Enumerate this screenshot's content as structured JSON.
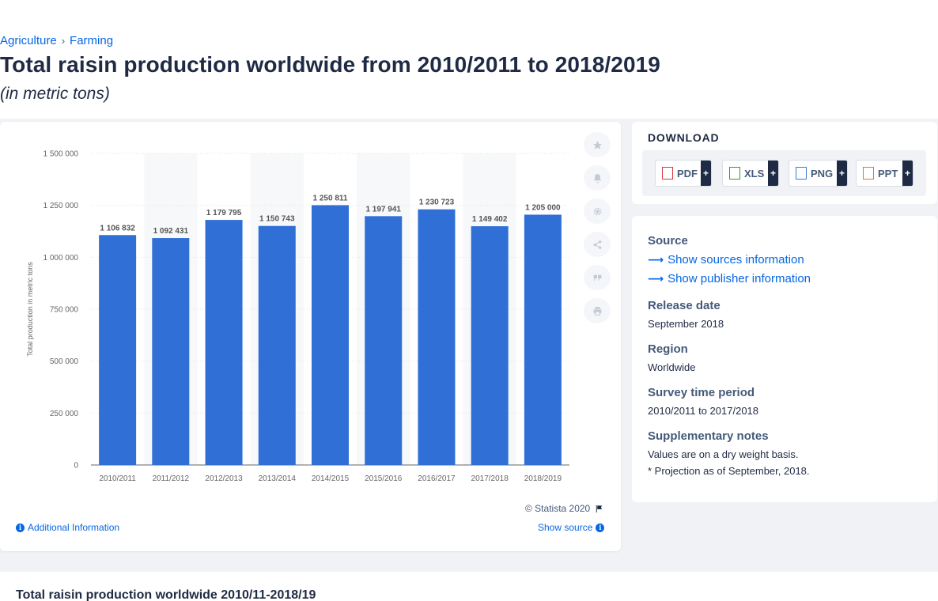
{
  "breadcrumb": {
    "items": [
      "Agriculture",
      "Farming"
    ],
    "separator": "›"
  },
  "page": {
    "title": "Total raisin production worldwide from 2010/2011 to 2018/2019",
    "subtitle": "(in metric tons)"
  },
  "chart_data": {
    "type": "bar",
    "categories": [
      "2010/2011",
      "2011/2012",
      "2012/2013",
      "2013/2014",
      "2014/2015",
      "2015/2016",
      "2016/2017",
      "2017/2018",
      "2018/2019"
    ],
    "values": [
      1106832,
      1092431,
      1179795,
      1150743,
      1250811,
      1197941,
      1230723,
      1149402,
      1205000
    ],
    "value_labels": [
      "1 106 832",
      "1 092 431",
      "1 179 795",
      "1 150 743",
      "1 250 811",
      "1 197 941",
      "1 230 723",
      "1 149 402",
      "1 205 000"
    ],
    "ylabel": "Total production in metric tons",
    "xlabel": "",
    "ylim": [
      0,
      1500000
    ],
    "yticks": [
      0,
      250000,
      500000,
      750000,
      1000000,
      1250000,
      1500000
    ],
    "ytick_labels": [
      "0",
      "250 000",
      "500 000",
      "750 000",
      "1 000 000",
      "1 250 000",
      "1 500 000"
    ],
    "grid": true,
    "bar_color": "#2f6fd6"
  },
  "chart_footer": {
    "copyright": "© Statista 2020",
    "additional_info": "Additional Information",
    "show_source": "Show source"
  },
  "tools": [
    {
      "icon": "star-icon",
      "label": "Favorite"
    },
    {
      "icon": "bell-icon",
      "label": "Notify"
    },
    {
      "icon": "gear-icon",
      "label": "Settings"
    },
    {
      "icon": "share-icon",
      "label": "Share"
    },
    {
      "icon": "quote-icon",
      "label": "Cite"
    },
    {
      "icon": "print-icon",
      "label": "Print"
    }
  ],
  "download": {
    "title": "DOWNLOAD",
    "buttons": [
      {
        "label": "PDF",
        "icon": "pdf-file-icon",
        "color": "#d9363e"
      },
      {
        "label": "XLS",
        "icon": "xls-file-icon",
        "color": "#2e9c47"
      },
      {
        "label": "PNG",
        "icon": "png-file-icon",
        "color": "#3a7bd5"
      },
      {
        "label": "PPT",
        "icon": "ppt-file-icon",
        "color": "#e07a1f"
      }
    ],
    "plus": "+"
  },
  "meta": {
    "source_heading": "Source",
    "show_sources": "Show sources information",
    "show_publisher": "Show publisher information",
    "release_heading": "Release date",
    "release_value": "September 2018",
    "region_heading": "Region",
    "region_value": "Worldwide",
    "survey_heading": "Survey time period",
    "survey_value": "2010/2011 to 2017/2018",
    "supp_heading": "Supplementary notes",
    "supp_line1": "Values are on a dry weight basis.",
    "supp_line2": "* Projection as of September, 2018."
  },
  "bottom": {
    "title": "Total raisin production worldwide 2010/11-2018/19"
  },
  "colors": {
    "accent": "#0666e5",
    "bar": "#2f6fd6",
    "dark": "#1f2a44"
  }
}
